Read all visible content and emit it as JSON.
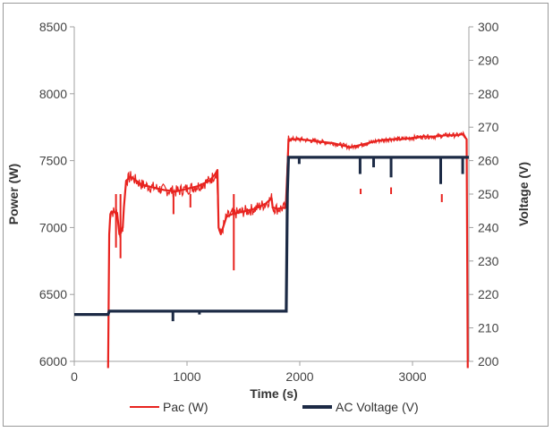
{
  "chart_data": {
    "type": "line",
    "xlabel": "Time (s)",
    "ylabel_left": "Power (W)",
    "ylabel_right": "Voltage (V)",
    "xlim": [
      0,
      3500
    ],
    "ylim_left": [
      6000,
      8500
    ],
    "ylim_right": [
      200,
      300
    ],
    "xticks": [
      "0",
      "1000",
      "2000",
      "3000"
    ],
    "yticks_left": [
      "6000",
      "6500",
      "7000",
      "7500",
      "8000",
      "8500"
    ],
    "yticks_right": [
      "200",
      "210",
      "220",
      "230",
      "240",
      "250",
      "260",
      "270",
      "280",
      "290",
      "300"
    ],
    "grid": "none",
    "legend_position": "bottom",
    "series": [
      {
        "name": "Pac (W)",
        "axis": "left",
        "color": "#e8231f",
        "x": [
          300,
          310,
          320,
          330,
          380,
          400,
          430,
          440,
          460,
          500,
          600,
          700,
          800,
          900,
          1000,
          1100,
          1200,
          1250,
          1270,
          1280,
          1300,
          1350,
          1400,
          1500,
          1600,
          1700,
          1750,
          1760,
          1800,
          1880,
          1890,
          1900,
          2000,
          2100,
          2200,
          2300,
          2400,
          2450,
          2500,
          2600,
          2700,
          2800,
          2900,
          3000,
          3100,
          3200,
          3300,
          3400,
          3450,
          3460,
          3480,
          3490
        ],
        "y": [
          5950,
          6950,
          7100,
          7120,
          7110,
          6950,
          7000,
          7150,
          7350,
          7380,
          7320,
          7300,
          7280,
          7270,
          7290,
          7310,
          7350,
          7400,
          7430,
          7000,
          6950,
          7080,
          7100,
          7120,
          7140,
          7180,
          7220,
          7150,
          7140,
          7150,
          7400,
          7660,
          7660,
          7650,
          7640,
          7630,
          7610,
          7600,
          7610,
          7630,
          7650,
          7660,
          7660,
          7670,
          7680,
          7680,
          7690,
          7690,
          7700,
          7680,
          7660,
          5950
        ]
      },
      {
        "name": "AC Voltage (V)",
        "axis": "right",
        "color": "#1c2a45",
        "x": [
          0,
          300,
          310,
          500,
          1000,
          1500,
          1880,
          1890,
          1900,
          2500,
          3000,
          3400,
          3500
        ],
        "y": [
          214,
          214,
          215,
          215,
          215,
          215,
          215,
          250,
          261,
          261,
          261,
          261,
          261
        ]
      }
    ],
    "spikes": {
      "pac_down": [
        {
          "x": 1415,
          "y": 6680
        },
        {
          "x": 880,
          "y": 7100
        },
        {
          "x": 1030,
          "y": 7150
        },
        {
          "x": 2540,
          "y": 7290
        },
        {
          "x": 2810,
          "y": 7300
        },
        {
          "x": 3260,
          "y": 7190
        },
        {
          "x": 370,
          "y": 6850
        },
        {
          "x": 410,
          "y": 6770
        }
      ],
      "voltage_down": [
        {
          "x": 875,
          "y": 212
        },
        {
          "x": 1110,
          "y": 214
        },
        {
          "x": 2535,
          "y": 256
        },
        {
          "x": 2655,
          "y": 258
        },
        {
          "x": 2810,
          "y": 255
        },
        {
          "x": 3250,
          "y": 253
        },
        {
          "x": 3445,
          "y": 256
        },
        {
          "x": 1995,
          "y": 259
        }
      ]
    }
  }
}
